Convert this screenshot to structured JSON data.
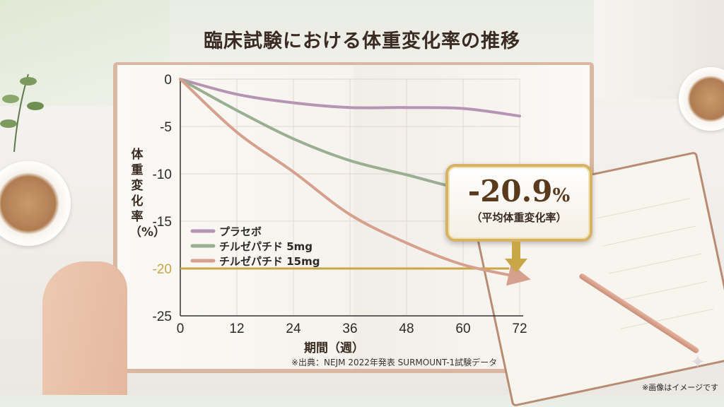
{
  "title": "臨床試験における体重変化率の推移",
  "footnote": "※画像はイメージです",
  "callout": {
    "value": "-20.9",
    "unit": "%",
    "label": "（平均体重変化率）"
  },
  "source": "※出典：NEJM 2022年発表 SURMOUNT-1試験データ",
  "colors": {
    "placebo": "#b794b4",
    "tz5": "#9aae92",
    "tz15": "#d6a08e",
    "highlight": "#c9a646"
  },
  "chart_data": {
    "type": "line",
    "title": "臨床試験における体重変化率の推移",
    "xlabel": "期間（週）",
    "ylabel": "体重変化率（%）",
    "xlim": [
      0,
      72
    ],
    "ylim": [
      -25,
      0
    ],
    "xticks": [
      0,
      12,
      24,
      36,
      48,
      60,
      72
    ],
    "yticks": [
      0,
      -5,
      -10,
      -15,
      -20,
      -25
    ],
    "grid": true,
    "legend": "bottom-left",
    "reference_line": {
      "y": -20
    },
    "x": [
      0,
      12,
      24,
      36,
      48,
      60,
      72
    ],
    "series": [
      {
        "name": "プラセボ",
        "values": [
          0,
          -1.6,
          -2.5,
          -3.0,
          -3.0,
          -3.1,
          -3.9
        ]
      },
      {
        "name": "チルゼパチド 5mg",
        "values": [
          0,
          -3.3,
          -6.3,
          -8.6,
          -10.1,
          -11.6,
          -12.3
        ]
      },
      {
        "name": "チルゼパチド 15mg",
        "values": [
          0,
          -5.6,
          -9.8,
          -14.3,
          -17.3,
          -19.6,
          -20.9
        ]
      }
    ]
  }
}
